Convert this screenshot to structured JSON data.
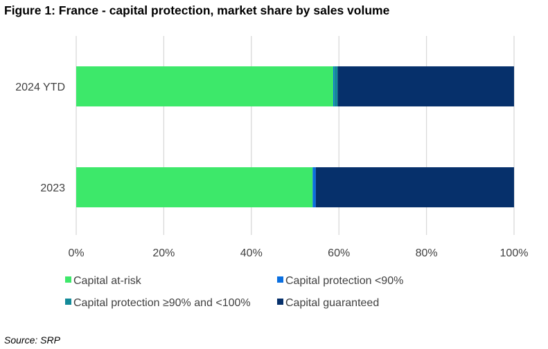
{
  "title": "Figure 1: France - capital protection, market share by sales volume",
  "source": "Source: SRP",
  "chart_data": {
    "type": "bar",
    "orientation": "horizontal",
    "stacked": true,
    "categories": [
      "2024 YTD",
      "2023"
    ],
    "series": [
      {
        "name": "Capital at-risk",
        "color": "#3de86a",
        "values": [
          58.7,
          54.0
        ]
      },
      {
        "name": "Capital protection <90%",
        "color": "#0a6fe0",
        "values": [
          0.2,
          0.7
        ]
      },
      {
        "name": "Capital protection ≥90% and <100%",
        "color": "#138a99",
        "values": [
          0.8,
          0.0
        ]
      },
      {
        "name": "Capital guaranteed",
        "color": "#06306b",
        "values": [
          40.3,
          45.3
        ]
      }
    ],
    "xlim": [
      0,
      100
    ],
    "xticks": [
      "0%",
      "20%",
      "40%",
      "60%",
      "80%",
      "100%"
    ],
    "xtick_values": [
      0,
      20,
      40,
      60,
      80,
      100
    ],
    "grid": true,
    "legend_position": "bottom",
    "legend_layout": [
      [
        "Capital at-risk",
        "Capital protection <90%"
      ],
      [
        "Capital protection ≥90% and <100%",
        "Capital guaranteed"
      ]
    ],
    "xlabel": "",
    "ylabel": ""
  }
}
